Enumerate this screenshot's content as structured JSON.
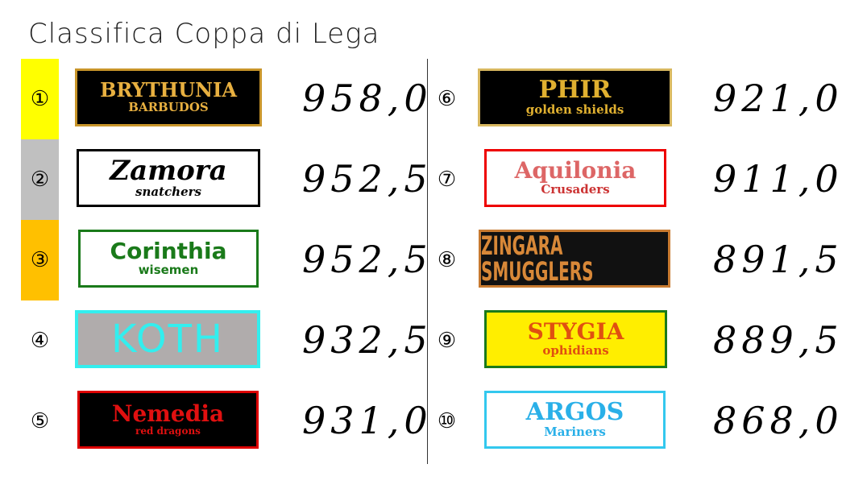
{
  "title": "Classifica Coppa di Lega",
  "colors": {
    "first": "#ffff00",
    "second": "#c0c0c0",
    "third": "#ffc000"
  },
  "teams": [
    {
      "rank": "①",
      "name": "BRYTHUNIA",
      "sub": "BARBUDOS",
      "score": "958,0"
    },
    {
      "rank": "②",
      "name": "Zamora",
      "sub": "snatchers",
      "score": "952,5"
    },
    {
      "rank": "③",
      "name": "Corinthia",
      "sub": "wisemen",
      "score": "952,5"
    },
    {
      "rank": "④",
      "name": "KOTH",
      "sub": "",
      "score": "932,5"
    },
    {
      "rank": "⑤",
      "name": "Nemedia",
      "sub": "red dragons",
      "score": "931,0"
    },
    {
      "rank": "⑥",
      "name": "PHIR",
      "sub": "golden shields",
      "score": "921,0"
    },
    {
      "rank": "⑦",
      "name": "Aquilonia",
      "sub": "Crusaders",
      "score": "911,0"
    },
    {
      "rank": "⑧",
      "name": "ZINGARA SMUGGLERS",
      "sub": "",
      "score": "891,5"
    },
    {
      "rank": "⑨",
      "name": "STYGIA",
      "sub": "ophidians",
      "score": "889,5"
    },
    {
      "rank": "⑩",
      "name": "ARGOS",
      "sub": "Mariners",
      "score": "868,0"
    }
  ]
}
